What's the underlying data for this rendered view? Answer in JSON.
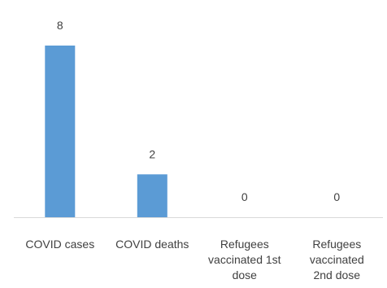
{
  "chart_data": {
    "type": "bar",
    "categories": [
      [
        "COVID cases"
      ],
      [
        "COVID deaths"
      ],
      [
        "Refugees",
        "vaccinated 1st",
        "dose"
      ],
      [
        "Refugees",
        "vaccinated",
        "2nd dose"
      ]
    ],
    "values": [
      8,
      2,
      0,
      0
    ],
    "title": "",
    "xlabel": "",
    "ylabel": "",
    "ylim": [
      0,
      8
    ],
    "grid": false,
    "legend": "none",
    "colors": {
      "bar": "#5b9bd5",
      "axis": "#d9d9d9",
      "text": "#404040"
    }
  }
}
